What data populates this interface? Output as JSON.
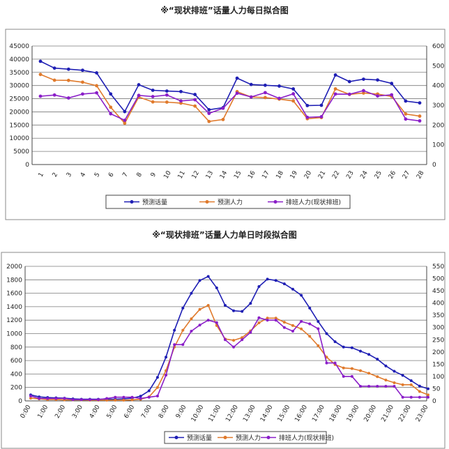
{
  "titles": {
    "chart1": "※“现状排班”话量人力每日拟合图",
    "chart2": "※“现状排班”话量人力单日时段拟合图"
  },
  "chart_data": [
    {
      "type": "line",
      "title": "※“现状排班”话量人力每日拟合图",
      "x": [
        "1",
        "2",
        "3",
        "4",
        "5",
        "6",
        "7",
        "8",
        "9",
        "10",
        "11",
        "12",
        "13",
        "14",
        "15",
        "16",
        "17",
        "18",
        "19",
        "20",
        "21",
        "22",
        "23",
        "24",
        "25",
        "26",
        "27",
        "28"
      ],
      "y_left_ticks": [
        "0",
        "5000",
        "10000",
        "15000",
        "20000",
        "25000",
        "30000",
        "35000",
        "40000",
        "45000"
      ],
      "y_right_ticks": [
        "0",
        "100",
        "200",
        "300",
        "400",
        "500",
        "600"
      ],
      "ylim_left": [
        0,
        45000
      ],
      "ylim_right": [
        0,
        600
      ],
      "grid": true,
      "legend_position": "bottom",
      "series": [
        {
          "name": "预测话量",
          "axis": "left",
          "color": "#1f1fb4",
          "values": [
            39200,
            36600,
            36200,
            35800,
            34800,
            26800,
            20100,
            30300,
            28200,
            27900,
            27700,
            26600,
            20800,
            21600,
            32800,
            30400,
            30100,
            29800,
            28700,
            22400,
            22500,
            34000,
            31500,
            32400,
            32100,
            30800,
            24100,
            23400
          ]
        },
        {
          "name": "预测人力",
          "axis": "right",
          "color": "#e07a2c",
          "values": [
            456,
            427,
            426,
            417,
            399,
            290,
            209,
            342,
            317,
            316,
            311,
            296,
            218,
            228,
            369,
            342,
            339,
            331,
            322,
            232,
            238,
            383,
            355,
            362,
            357,
            345,
            256,
            245
          ]
        },
        {
          "name": "排班人力(现状排班)",
          "axis": "right",
          "color": "#8a1ec8",
          "values": [
            346,
            352,
            337,
            357,
            363,
            257,
            224,
            350,
            344,
            352,
            322,
            328,
            259,
            285,
            361,
            342,
            364,
            335,
            358,
            239,
            242,
            357,
            356,
            374,
            347,
            353,
            230,
            221
          ]
        }
      ]
    },
    {
      "type": "line",
      "title": "※“现状排班”话量人力单日时段拟合图",
      "x_tick_labels": [
        "0:00",
        "1:00",
        "2:00",
        "3:00",
        "4:00",
        "5:00",
        "6:00",
        "7:00",
        "8:00",
        "9:00",
        "10:00",
        "11:00",
        "12:00",
        "13:00",
        "14:00",
        "15:00",
        "16:00",
        "17:00",
        "18:00",
        "19:00",
        "20:00",
        "21:00",
        "22:00",
        "23:00"
      ],
      "y_left_ticks": [
        "0",
        "200",
        "400",
        "600",
        "800",
        "1000",
        "1200",
        "1400",
        "1600",
        "1800",
        "2000"
      ],
      "y_right_ticks": [
        "0",
        "50",
        "100",
        "150",
        "200",
        "250",
        "300",
        "350",
        "400",
        "450",
        "500",
        "550"
      ],
      "ylim_left": [
        0,
        2000
      ],
      "ylim_right": [
        0,
        550
      ],
      "grid": true,
      "legend_position": "bottom",
      "series": [
        {
          "name": "预测话量",
          "axis": "left",
          "color": "#1f1fb4",
          "values": [
            90,
            60,
            50,
            45,
            40,
            30,
            25,
            25,
            25,
            25,
            25,
            30,
            40,
            70,
            150,
            350,
            650,
            1050,
            1380,
            1600,
            1790,
            1850,
            1680,
            1420,
            1340,
            1330,
            1450,
            1700,
            1810,
            1790,
            1740,
            1660,
            1570,
            1380,
            1180,
            1000,
            880,
            800,
            790,
            740,
            690,
            620,
            520,
            440,
            380,
            300,
            220,
            180
          ]
        },
        {
          "name": "预测人力",
          "axis": "left",
          "color": "#e07a2c",
          "values": [
            40,
            30,
            20,
            20,
            15,
            15,
            15,
            10,
            10,
            10,
            10,
            10,
            15,
            25,
            60,
            200,
            450,
            800,
            1050,
            1220,
            1360,
            1420,
            1120,
            920,
            900,
            940,
            1040,
            1160,
            1230,
            1230,
            1170,
            1120,
            1070,
            960,
            820,
            650,
            540,
            490,
            480,
            450,
            410,
            360,
            310,
            270,
            240,
            240,
            140,
            90
          ]
        },
        {
          "name": "排班人力(现状排班)",
          "axis": "right",
          "color": "#8a1ec8",
          "values": [
            20,
            10,
            10,
            10,
            10,
            5,
            5,
            5,
            5,
            10,
            15,
            15,
            15,
            10,
            15,
            20,
            105,
            230,
            230,
            285,
            310,
            330,
            320,
            250,
            220,
            250,
            280,
            340,
            330,
            330,
            300,
            285,
            325,
            315,
            295,
            155,
            155,
            100,
            100,
            60,
            60,
            60,
            60,
            60,
            15,
            15,
            15,
            15
          ]
        }
      ]
    }
  ]
}
